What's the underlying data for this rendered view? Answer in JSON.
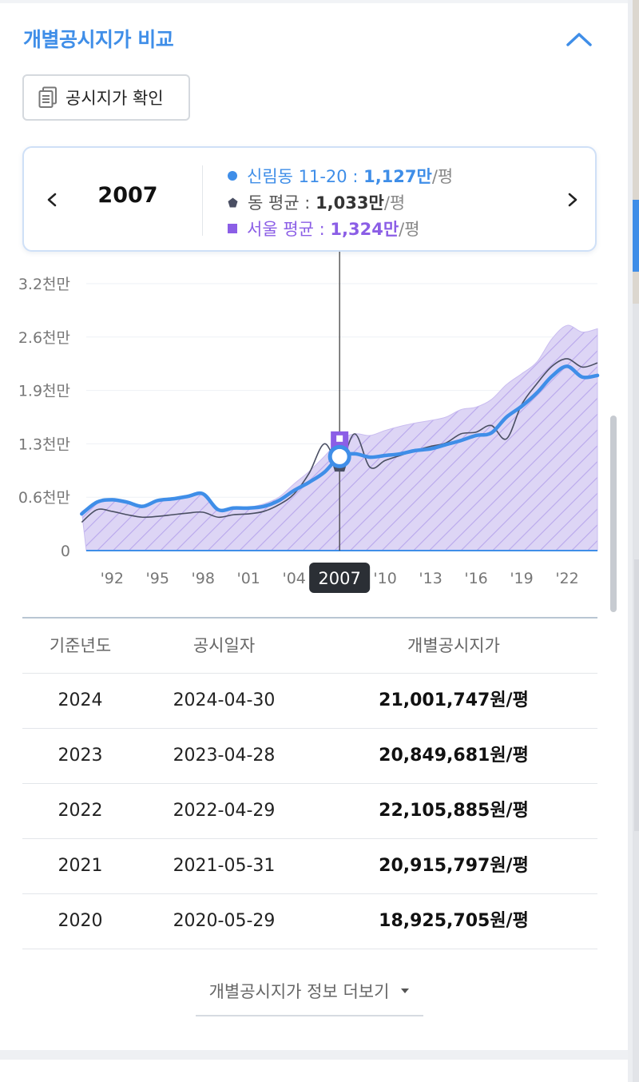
{
  "section": {
    "title": "개별공시지가 비교"
  },
  "confirm_button": {
    "label": "공시지가 확인"
  },
  "selector": {
    "year": "2007",
    "rows": [
      {
        "name": "신림동 11-20 : ",
        "value": "1,127만",
        "unit": "/평"
      },
      {
        "name": "동 평균 : ",
        "value": "1,033만",
        "unit": "/평"
      },
      {
        "name": "서울 평균 : ",
        "value": "1,324만",
        "unit": "/평"
      }
    ]
  },
  "colors": {
    "primary": "#3f8ee8",
    "dong": "#4a4f63",
    "seoul": "#8b5ee6",
    "seoul_fill": "#ddd5f5"
  },
  "chart_data": {
    "type": "line",
    "x_ticks": [
      "'92",
      "'95",
      "'98",
      "'01",
      "'04",
      "'07",
      "'10",
      "'13",
      "'16",
      "'19",
      "'22"
    ],
    "y_ticks": [
      "3.2천만",
      "2.6천만",
      "1.9천만",
      "1.3천만",
      "0.6천만",
      "0"
    ],
    "ylim": [
      0,
      32000000
    ],
    "highlight": "2007",
    "series": [
      {
        "name": "신림동 11-20",
        "x": [
          1990,
          1991,
          1992,
          1993,
          1994,
          1995,
          1996,
          1997,
          1998,
          1999,
          2000,
          2001,
          2002,
          2003,
          2004,
          2005,
          2006,
          2007,
          2008,
          2009,
          2010,
          2011,
          2012,
          2013,
          2014,
          2015,
          2016,
          2017,
          2018,
          2019,
          2020,
          2021,
          2022,
          2023,
          2024
        ],
        "values": [
          4400000,
          5800000,
          6100000,
          5800000,
          5300000,
          6000000,
          6200000,
          6500000,
          6800000,
          4900000,
          5100000,
          5100000,
          5300000,
          6000000,
          7200000,
          8200000,
          9400000,
          11270000,
          11600000,
          11200000,
          11400000,
          11600000,
          12000000,
          12200000,
          12700000,
          13200000,
          13800000,
          14100000,
          16000000,
          17300000,
          18900000,
          20900000,
          22100000,
          20800000,
          21000000
        ]
      },
      {
        "name": "동 평균",
        "x": [
          1990,
          1991,
          1992,
          1993,
          1994,
          1995,
          1996,
          1997,
          1998,
          1999,
          2000,
          2001,
          2002,
          2003,
          2004,
          2005,
          2006,
          2007,
          2008,
          2009,
          2010,
          2011,
          2012,
          2013,
          2014,
          2015,
          2016,
          2017,
          2018,
          2019,
          2020,
          2021,
          2022,
          2023,
          2024
        ],
        "values": [
          3400000,
          4900000,
          4700000,
          4300000,
          4000000,
          4100000,
          4300000,
          4500000,
          4600000,
          4000000,
          4300000,
          4400000,
          4700000,
          5500000,
          6800000,
          9300000,
          12800000,
          10330000,
          14000000,
          10000000,
          10800000,
          11400000,
          12000000,
          12500000,
          12900000,
          14000000,
          14200000,
          15000000,
          13400000,
          17500000,
          20000000,
          22100000,
          23000000,
          22000000,
          22500000
        ]
      },
      {
        "name": "서울 평균",
        "x": [
          1990,
          1991,
          1992,
          1993,
          1994,
          1995,
          1996,
          1997,
          1998,
          1999,
          2000,
          2001,
          2002,
          2003,
          2004,
          2005,
          2006,
          2007,
          2008,
          2009,
          2010,
          2011,
          2012,
          2013,
          2014,
          2015,
          2016,
          2017,
          2018,
          2019,
          2020,
          2021,
          2022,
          2023,
          2024
        ],
        "values": [
          4700000,
          5800000,
          6000000,
          5800000,
          5300000,
          5900000,
          6100000,
          6400000,
          6700000,
          4800000,
          5000000,
          5200000,
          5600000,
          6400000,
          8000000,
          9500000,
          11300000,
          13240000,
          14000000,
          13800000,
          14400000,
          14900000,
          15300000,
          15600000,
          16000000,
          16900000,
          17200000,
          18100000,
          19900000,
          21200000,
          22600000,
          25400000,
          27000000,
          26200000,
          26600000
        ]
      }
    ]
  },
  "table": {
    "headers": [
      "기준년도",
      "공시일자",
      "개별공시지가"
    ],
    "rows": [
      [
        "2024",
        "2024-04-30",
        "21,001,747원/평"
      ],
      [
        "2023",
        "2023-04-28",
        "20,849,681원/평"
      ],
      [
        "2022",
        "2022-04-29",
        "22,105,885원/평"
      ],
      [
        "2021",
        "2021-05-31",
        "20,915,797원/평"
      ],
      [
        "2020",
        "2020-05-29",
        "18,925,705원/평"
      ]
    ]
  },
  "more_button": {
    "label": "개별공시지가 정보 더보기"
  }
}
